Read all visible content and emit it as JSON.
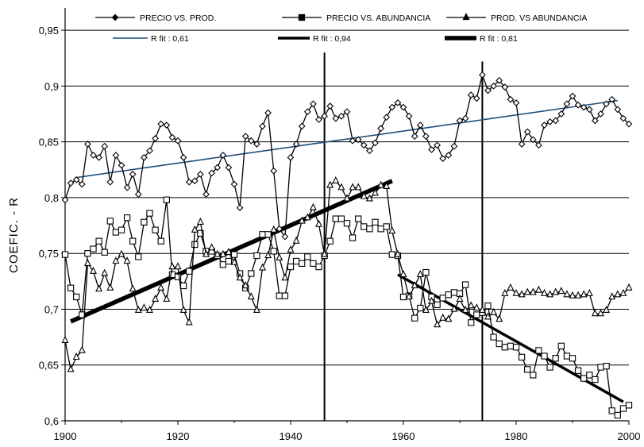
{
  "chart_data": {
    "type": "line",
    "ylabel": "COEFIC. - R",
    "xlabel": "",
    "xlim": [
      1900,
      2000
    ],
    "ylim": [
      0.6,
      0.97
    ],
    "x_ticks": [
      "1900",
      "1920",
      "1940",
      "1960",
      "1980",
      "2000"
    ],
    "y_ticks": [
      "0,6",
      "0,65",
      "0,7",
      "0,75",
      "0,8",
      "0,85",
      "0,9",
      "0,95"
    ],
    "grid": "horizontal",
    "legend_position": "top",
    "series": [
      {
        "name": "PRECIO VS. PROD.",
        "marker": "diamond",
        "color": "#000000",
        "x_start": 1900,
        "values": [
          0.798,
          0.813,
          0.816,
          0.812,
          0.848,
          0.838,
          0.836,
          0.846,
          0.814,
          0.838,
          0.829,
          0.809,
          0.821,
          0.803,
          0.836,
          0.842,
          0.853,
          0.866,
          0.865,
          0.854,
          0.851,
          0.836,
          0.814,
          0.815,
          0.821,
          0.803,
          0.822,
          0.827,
          0.838,
          0.827,
          0.812,
          0.791,
          0.855,
          0.851,
          0.848,
          0.864,
          0.876,
          0.824,
          0.772,
          0.765,
          0.836,
          0.848,
          0.864,
          0.877,
          0.884,
          0.87,
          0.873,
          0.882,
          0.871,
          0.873,
          0.877,
          0.851,
          0.852,
          0.847,
          0.842,
          0.849,
          0.862,
          0.872,
          0.881,
          0.885,
          0.881,
          0.873,
          0.855,
          0.865,
          0.855,
          0.843,
          0.847,
          0.835,
          0.838,
          0.846,
          0.869,
          0.871,
          0.892,
          0.889,
          0.91,
          0.896,
          0.9,
          0.905,
          0.899,
          0.888,
          0.885,
          0.848,
          0.859,
          0.852,
          0.847,
          0.865,
          0.868,
          0.869,
          0.875,
          0.884,
          0.891,
          0.883,
          0.881,
          0.879,
          0.869,
          0.875,
          0.884,
          0.888,
          0.879,
          0.871,
          0.866
        ]
      },
      {
        "name": "PRECIO VS. ABUNDANCIA",
        "marker": "square",
        "color": "#000000",
        "x_start": 1900,
        "values": [
          0.749,
          0.719,
          0.711,
          0.695,
          0.75,
          0.754,
          0.761,
          0.751,
          0.779,
          0.769,
          0.771,
          0.782,
          0.761,
          0.747,
          0.778,
          0.786,
          0.771,
          0.761,
          0.798,
          0.731,
          0.729,
          0.721,
          0.734,
          0.758,
          0.768,
          0.752,
          0.752,
          0.748,
          0.74,
          0.743,
          0.749,
          0.732,
          0.719,
          0.732,
          0.748,
          0.767,
          0.767,
          0.752,
          0.712,
          0.712,
          0.738,
          0.743,
          0.741,
          0.747,
          0.741,
          0.738,
          0.748,
          0.761,
          0.781,
          0.781,
          0.777,
          0.764,
          0.781,
          0.774,
          0.772,
          0.778,
          0.772,
          0.774,
          0.749,
          0.748,
          0.711,
          0.712,
          0.692,
          0.701,
          0.733,
          0.711,
          0.704,
          0.71,
          0.713,
          0.715,
          0.714,
          0.722,
          0.688,
          0.695,
          0.697,
          0.703,
          0.675,
          0.669,
          0.666,
          0.667,
          0.666,
          0.657,
          0.646,
          0.641,
          0.663,
          0.658,
          0.648,
          0.656,
          0.667,
          0.658,
          0.656,
          0.645,
          0.638,
          0.641,
          0.637,
          0.648,
          0.649,
          0.609,
          0.605,
          0.611,
          0.614
        ]
      },
      {
        "name": "PROD. VS ABUNDANCIA",
        "marker": "triangle",
        "color": "#000000",
        "x_start": 1900,
        "values": [
          0.672,
          0.646,
          0.657,
          0.663,
          0.741,
          0.734,
          0.718,
          0.732,
          0.719,
          0.743,
          0.749,
          0.743,
          0.718,
          0.699,
          0.701,
          0.699,
          0.709,
          0.719,
          0.709,
          0.738,
          0.738,
          0.699,
          0.688,
          0.771,
          0.778,
          0.749,
          0.755,
          0.749,
          0.749,
          0.751,
          0.742,
          0.728,
          0.721,
          0.711,
          0.699,
          0.737,
          0.748,
          0.771,
          0.746,
          0.728,
          0.753,
          0.761,
          0.779,
          0.782,
          0.791,
          0.776,
          0.749,
          0.811,
          0.815,
          0.809,
          0.799,
          0.809,
          0.809,
          0.801,
          0.799,
          0.804,
          0.811,
          0.81,
          0.77,
          0.749,
          0.731,
          0.711,
          0.721,
          0.731,
          0.699,
          0.707,
          0.686,
          0.692,
          0.691,
          0.7,
          0.709,
          0.699,
          0.703,
          0.701,
          0.699,
          0.693,
          0.697,
          0.691,
          0.714,
          0.719,
          0.714,
          0.713,
          0.715,
          0.715,
          0.717,
          0.714,
          0.713,
          0.715,
          0.716,
          0.713,
          0.712,
          0.712,
          0.713,
          0.714,
          0.696,
          0.696,
          0.699,
          0.711,
          0.713,
          0.714,
          0.719
        ]
      }
    ],
    "fits": [
      {
        "name": "R fit : 0,61",
        "color": "#1f4e79",
        "width": 1.6,
        "x": [
          1902,
          1998
        ],
        "y": [
          0.818,
          0.887
        ]
      },
      {
        "name": "R fit : 0,94",
        "color": "#000000",
        "width": 3.5,
        "x": [
          1959,
          1999
        ],
        "y": [
          0.731,
          0.617
        ]
      },
      {
        "name": "R fit : 0,81",
        "color": "#000000",
        "width": 5.5,
        "x": [
          1901,
          1958
        ],
        "y": [
          0.689,
          0.815
        ]
      }
    ],
    "vertical_markers": [
      {
        "x": 1946,
        "y_top": 0.93
      },
      {
        "x": 1974,
        "y_top": 0.922
      }
    ]
  }
}
